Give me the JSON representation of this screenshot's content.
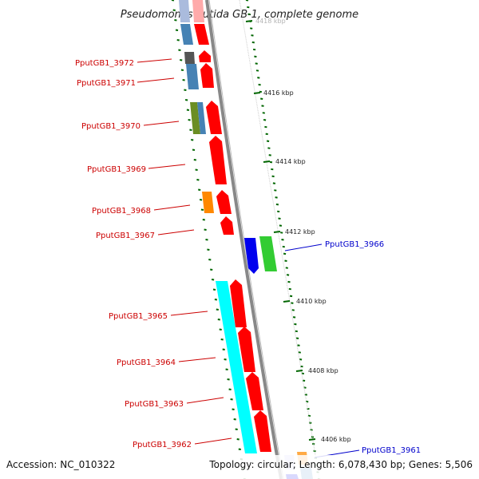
{
  "title": "Pseudomonas putida GB-1, complete genome",
  "footer": {
    "accession": "Accession: NC_010322",
    "topology": "Topology: circular; Length: 6,078,430 bp; Genes: 5,506"
  },
  "colors": {
    "backbone": "#888888",
    "forward_gene": "#ff0000",
    "cyan_gene": "#00ffff",
    "blue_gene": "#0000ee",
    "green_gene": "#33cc33",
    "orange_gene": "#ff8800",
    "steelblue_gene": "#4682b4",
    "olive_gene": "#6b8e23",
    "gray_gene": "#555555",
    "tick_green": "#006600",
    "label_red": "#cc0000",
    "label_blue": "#0000cc"
  },
  "kbp_labels": [
    "4418 kbp",
    "4416 kbp",
    "4414 kbp",
    "4412 kbp",
    "4410 kbp",
    "4408 kbp",
    "4406 kbp"
  ],
  "gene_labels_left": [
    "PputGB1_3972",
    "PputGB1_3971",
    "PputGB1_3970",
    "PputGB1_3969",
    "PputGB1_3968",
    "PputGB1_3967",
    "PputGB1_3965",
    "PputGB1_3964",
    "PputGB1_3963",
    "PputGB1_3962"
  ],
  "gene_labels_right": [
    "PputGB1_3966",
    "PputGB1_3961"
  ]
}
